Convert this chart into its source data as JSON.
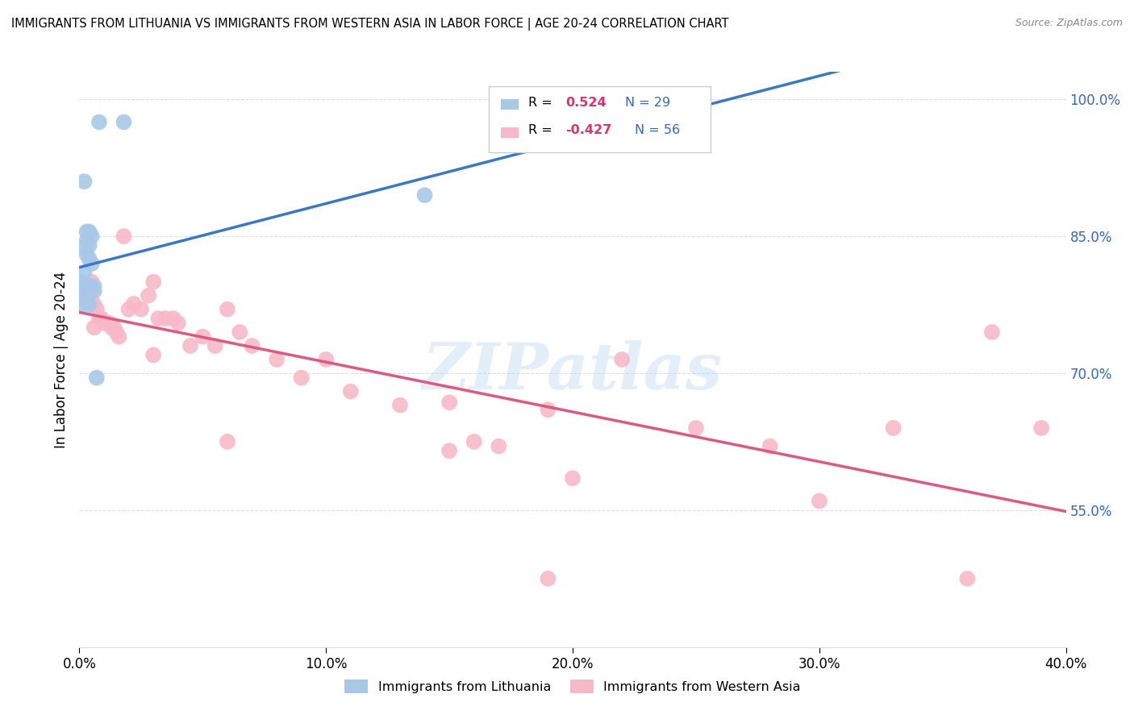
{
  "title": "IMMIGRANTS FROM LITHUANIA VS IMMIGRANTS FROM WESTERN ASIA IN LABOR FORCE | AGE 20-24 CORRELATION CHART",
  "source": "Source: ZipAtlas.com",
  "ylabel": "In Labor Force | Age 20-24",
  "xlim": [
    0.0,
    0.4
  ],
  "ylim": [
    0.4,
    1.03
  ],
  "yticks": [
    0.55,
    0.7,
    0.85,
    1.0
  ],
  "ytick_labels": [
    "55.0%",
    "70.0%",
    "85.0%",
    "100.0%"
  ],
  "xticks": [
    0.0,
    0.1,
    0.2,
    0.3,
    0.4
  ],
  "xtick_labels": [
    "0.0%",
    "10.0%",
    "20.0%",
    "30.0%",
    "40.0%"
  ],
  "blue_color": "#a8c8e8",
  "blue_line_color": "#3878c8",
  "pink_color": "#f8b8c8",
  "pink_line_color": "#e05880",
  "watermark": "ZIPatlas",
  "blue_scatter_x": [
    0.008,
    0.018,
    0.002,
    0.003,
    0.004,
    0.005,
    0.003,
    0.004,
    0.002,
    0.003,
    0.004,
    0.005,
    0.002,
    0.001,
    0.001,
    0.002,
    0.003,
    0.001,
    0.002,
    0.002,
    0.003,
    0.004,
    0.005,
    0.006,
    0.006,
    0.002,
    0.001,
    0.14,
    0.007
  ],
  "blue_scatter_y": [
    0.975,
    0.975,
    0.91,
    0.855,
    0.855,
    0.85,
    0.845,
    0.84,
    0.838,
    0.83,
    0.825,
    0.82,
    0.81,
    0.8,
    0.798,
    0.795,
    0.79,
    0.785,
    0.782,
    0.78,
    0.778,
    0.775,
    0.795,
    0.795,
    0.79,
    0.78,
    0.775,
    0.895,
    0.695
  ],
  "pink_scatter_x": [
    0.001,
    0.002,
    0.003,
    0.004,
    0.005,
    0.005,
    0.006,
    0.007,
    0.008,
    0.009,
    0.01,
    0.012,
    0.013,
    0.014,
    0.015,
    0.016,
    0.018,
    0.02,
    0.022,
    0.025,
    0.028,
    0.03,
    0.032,
    0.035,
    0.038,
    0.04,
    0.045,
    0.05,
    0.055,
    0.06,
    0.065,
    0.07,
    0.08,
    0.09,
    0.1,
    0.11,
    0.13,
    0.15,
    0.16,
    0.17,
    0.19,
    0.22,
    0.25,
    0.28,
    0.3,
    0.33,
    0.36,
    0.39,
    0.003,
    0.006,
    0.03,
    0.06,
    0.19,
    0.2,
    0.15,
    0.37
  ],
  "pink_scatter_y": [
    0.79,
    0.79,
    0.79,
    0.785,
    0.78,
    0.8,
    0.775,
    0.77,
    0.76,
    0.76,
    0.755,
    0.755,
    0.75,
    0.75,
    0.745,
    0.74,
    0.85,
    0.77,
    0.776,
    0.77,
    0.785,
    0.8,
    0.76,
    0.76,
    0.76,
    0.755,
    0.73,
    0.74,
    0.73,
    0.77,
    0.745,
    0.73,
    0.715,
    0.695,
    0.715,
    0.68,
    0.665,
    0.668,
    0.625,
    0.62,
    0.66,
    0.715,
    0.64,
    0.62,
    0.56,
    0.64,
    0.475,
    0.64,
    0.79,
    0.75,
    0.72,
    0.625,
    0.475,
    0.585,
    0.615,
    0.745
  ],
  "legend_r1": "R = ",
  "legend_v1": "0.524",
  "legend_n1": "N = 29",
  "legend_r2": "R = ",
  "legend_v2": "-0.427",
  "legend_n2": "N = 56",
  "legend_label1": "Immigrants from Lithuania",
  "legend_label2": "Immigrants from Western Asia"
}
